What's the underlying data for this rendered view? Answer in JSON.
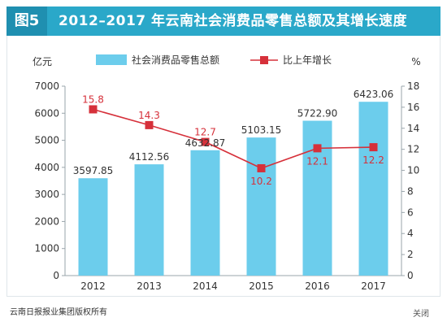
{
  "header": {
    "figure_label": "图5",
    "title": "2012–2017 年云南社会消费品零售总额及其增长速度"
  },
  "footer": {
    "copyright": "云南日报报业集团版权所有",
    "close_label": "关闭"
  },
  "chart_data": {
    "type": "bar",
    "categories": [
      "2012",
      "2013",
      "2014",
      "2015",
      "2016",
      "2017"
    ],
    "series": [
      {
        "name": "社会消费品零售总额",
        "type": "bar",
        "axis": "left",
        "color": "#6ccdec",
        "values": [
          3597.85,
          4112.56,
          4632.87,
          5103.15,
          5722.9,
          6423.06
        ],
        "labels": [
          "3597.85",
          "4112.56",
          "4632.87",
          "5103.15",
          "5722.90",
          "6423.06"
        ]
      },
      {
        "name": "比上年增长",
        "type": "line",
        "axis": "right",
        "color": "#d6303a",
        "values": [
          15.8,
          14.3,
          12.7,
          10.2,
          12.1,
          12.2
        ],
        "labels": [
          "15.8",
          "14.3",
          "12.7",
          "10.2",
          "12.1",
          "12.2"
        ]
      }
    ],
    "left_axis": {
      "unit": "亿元",
      "min": 0,
      "max": 7000,
      "ticks": [
        "0",
        "1000",
        "2000",
        "3000",
        "4000",
        "5000",
        "6000",
        "7000"
      ]
    },
    "right_axis": {
      "unit": "%",
      "min": 0,
      "max": 18,
      "ticks": [
        "0",
        "2",
        "4",
        "6",
        "8",
        "10",
        "12",
        "14",
        "16",
        "18"
      ]
    },
    "grid": false,
    "legend_position": "top"
  }
}
